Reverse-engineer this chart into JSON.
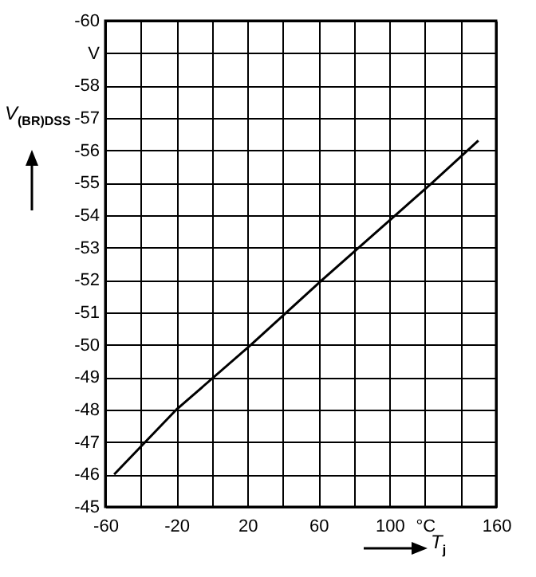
{
  "chart_data": {
    "type": "line",
    "xlabel": "T$_{j}$",
    "ylabel": "V$_{(BR)DSS}$",
    "x": [
      -55,
      -20,
      22,
      62,
      124,
      150
    ],
    "series": [
      {
        "color": "#000000",
        "values": [
          -46,
          -48,
          -50,
          -52,
          -55,
          -56.3
        ]
      }
    ],
    "xlim": [
      -60,
      160
    ],
    "xticks": [
      -60,
      {
        "value": -40,
        "label": null
      },
      -20,
      {
        "value": 0,
        "label": null
      },
      20,
      {
        "value": 40,
        "label": null
      },
      60,
      {
        "value": 80,
        "label": null
      },
      100,
      {
        "value": 120,
        "label": "°C"
      },
      {
        "value": 140,
        "label": null
      },
      160
    ],
    "ylim": [
      -45,
      -60
    ],
    "yticks": [
      -60,
      {
        "value": -59,
        "label": "V"
      },
      -58,
      -57,
      -56,
      -55,
      -54,
      -53,
      -52,
      -51,
      -50,
      -49,
      -48,
      -47,
      -46,
      -45
    ],
    "grid": true,
    "marker": "none",
    "line_style": "solid"
  }
}
